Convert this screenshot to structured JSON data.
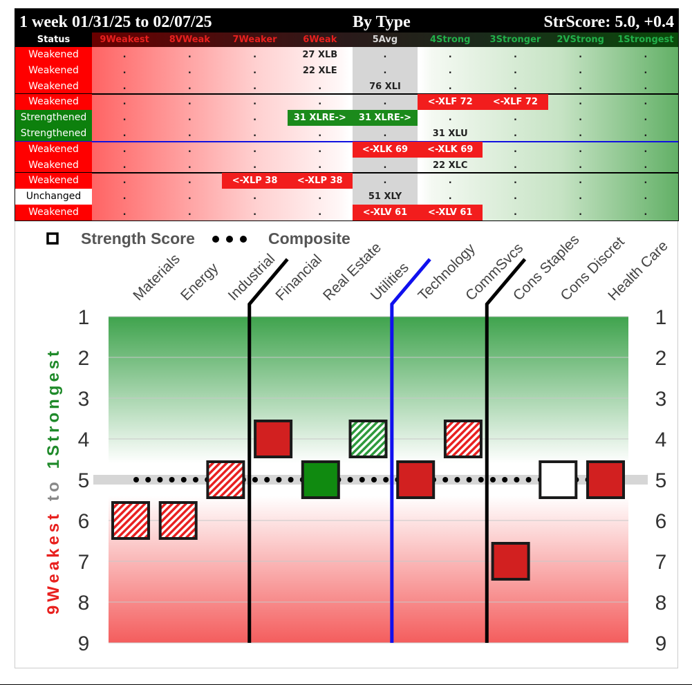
{
  "table": {
    "title_left": "1 week 01/31/25 to 02/07/25",
    "title_center": "By Type",
    "title_right": "StrScore: 5.0, +0.4",
    "status_header": "Status",
    "columns": [
      {
        "label": "9Weakest",
        "color": "#e8201e"
      },
      {
        "label": "8VWeak",
        "color": "#e8201e"
      },
      {
        "label": "7Weaker",
        "color": "#e8201e"
      },
      {
        "label": "6Weak",
        "color": "#e8201e"
      },
      {
        "label": "5Avg",
        "color": "#d9d9d9"
      },
      {
        "label": "4Strong",
        "color": "#22b04a"
      },
      {
        "label": "3Stronger",
        "color": "#22b04a"
      },
      {
        "label": "2VStrong",
        "color": "#22b04a"
      },
      {
        "label": "1Strongest",
        "color": "#22b04a"
      }
    ],
    "rows": [
      {
        "status": "Weakened",
        "cells": [
          ".",
          ".",
          ".",
          "27 XLB",
          ".",
          ".",
          ".",
          ".",
          "."
        ],
        "styles": {}
      },
      {
        "status": "Weakened",
        "cells": [
          ".",
          ".",
          ".",
          "22 XLE",
          ".",
          ".",
          ".",
          ".",
          "."
        ],
        "styles": {}
      },
      {
        "status": "Weakened",
        "cells": [
          ".",
          ".",
          ".",
          ".",
          "76 XLI",
          ".",
          ".",
          ".",
          "."
        ],
        "styles": {},
        "sep_after": "#000"
      },
      {
        "status": "Weakened",
        "cells": [
          ".",
          ".",
          ".",
          ".",
          ".",
          "<-XLF 72",
          "<-XLF 72",
          ".",
          "."
        ],
        "styles": {
          "5": "red",
          "6": "red"
        }
      },
      {
        "status": "Strengthened",
        "cells": [
          ".",
          ".",
          ".",
          "31 XLRE->",
          "31 XLRE->",
          ".",
          ".",
          ".",
          "."
        ],
        "styles": {
          "3": "green",
          "4": "green"
        }
      },
      {
        "status": "Strengthened",
        "cells": [
          ".",
          ".",
          ".",
          ".",
          ".",
          "31 XLU",
          ".",
          ".",
          "."
        ],
        "styles": {},
        "sep_after": "#1010e0"
      },
      {
        "status": "Weakened",
        "cells": [
          ".",
          ".",
          ".",
          ".",
          "<-XLK 69",
          "<-XLK 69",
          ".",
          ".",
          "."
        ],
        "styles": {
          "4": "red",
          "5": "red"
        }
      },
      {
        "status": "Weakened",
        "cells": [
          ".",
          ".",
          ".",
          ".",
          ".",
          "22 XLC",
          ".",
          ".",
          "."
        ],
        "styles": {},
        "sep_after": "#000"
      },
      {
        "status": "Weakened",
        "cells": [
          ".",
          ".",
          "<-XLP 38",
          "<-XLP 38",
          ".",
          ".",
          ".",
          ".",
          "."
        ],
        "styles": {
          "2": "red",
          "3": "red"
        }
      },
      {
        "status": "Unchanged",
        "cells": [
          ".",
          ".",
          ".",
          ".",
          "51 XLY",
          ".",
          ".",
          ".",
          "."
        ],
        "styles": {}
      },
      {
        "status": "Weakened",
        "cells": [
          ".",
          ".",
          ".",
          ".",
          "<-XLV 61",
          "<-XLV 61",
          ".",
          ".",
          "."
        ],
        "styles": {
          "4": "red",
          "5": "red"
        }
      }
    ]
  },
  "chart_data": {
    "type": "scatter",
    "legend": {
      "strength_label": "Strength Score",
      "composite_label": "Composite",
      "placement": "top-left"
    },
    "ylabel_parts": [
      "9Weakest",
      "to",
      "1Strongest"
    ],
    "ylim": [
      1,
      9
    ],
    "y_inverted": true,
    "yticks": [
      1,
      2,
      3,
      4,
      5,
      6,
      7,
      8,
      9
    ],
    "categories": [
      "Materials",
      "Energy",
      "Industrial",
      "Financial",
      "Real Estate",
      "Utilities",
      "Technology",
      "CommSvcs",
      "Cons Staples",
      "Cons Discret",
      "Health Care"
    ],
    "strength_score": [
      6,
      6,
      5,
      4,
      5,
      4,
      5,
      4,
      7,
      5,
      5
    ],
    "marker_style": [
      "red-hatched",
      "red-hatched",
      "red-hatched",
      "red-solid",
      "green-solid",
      "green-hatched",
      "red-solid",
      "red-hatched",
      "red-solid",
      "white",
      "red-solid"
    ],
    "composite": 5,
    "group_dividers": [
      {
        "after": "Industrial",
        "color": "#000000"
      },
      {
        "after": "Utilities",
        "color": "#1010ee"
      },
      {
        "after": "CommSvcs",
        "color": "#000000"
      }
    ]
  }
}
